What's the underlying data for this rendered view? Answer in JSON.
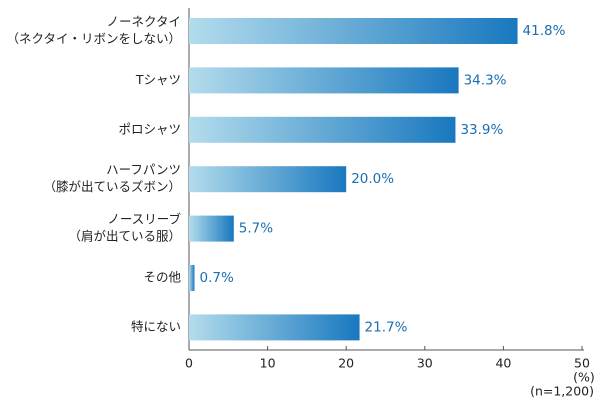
{
  "chart_data": {
    "type": "bar",
    "orientation": "horizontal",
    "categories": [
      [
        "ノーネクタイ",
        "（ネクタイ・リボンをしない）"
      ],
      [
        "Tシャツ"
      ],
      [
        "ポロシャツ"
      ],
      [
        "ハーフパンツ",
        "（膝が出ているズボン）"
      ],
      [
        "ノースリーブ",
        "（肩が出ている服）"
      ],
      [
        "その他"
      ],
      [
        "特にない"
      ]
    ],
    "values": [
      41.8,
      34.3,
      33.9,
      20.0,
      5.7,
      0.7,
      21.7
    ],
    "value_labels": [
      "41.8%",
      "34.3%",
      "33.9%",
      "20.0%",
      "5.7%",
      "0.7%",
      "21.7%"
    ],
    "color_start": "#b3dcec",
    "color": "#1878bf",
    "xlim": [
      0,
      50
    ],
    "xticks": [
      0,
      10,
      20,
      30,
      40,
      50
    ],
    "x_axis_label": "(%)",
    "note": "(n=1,200)"
  }
}
